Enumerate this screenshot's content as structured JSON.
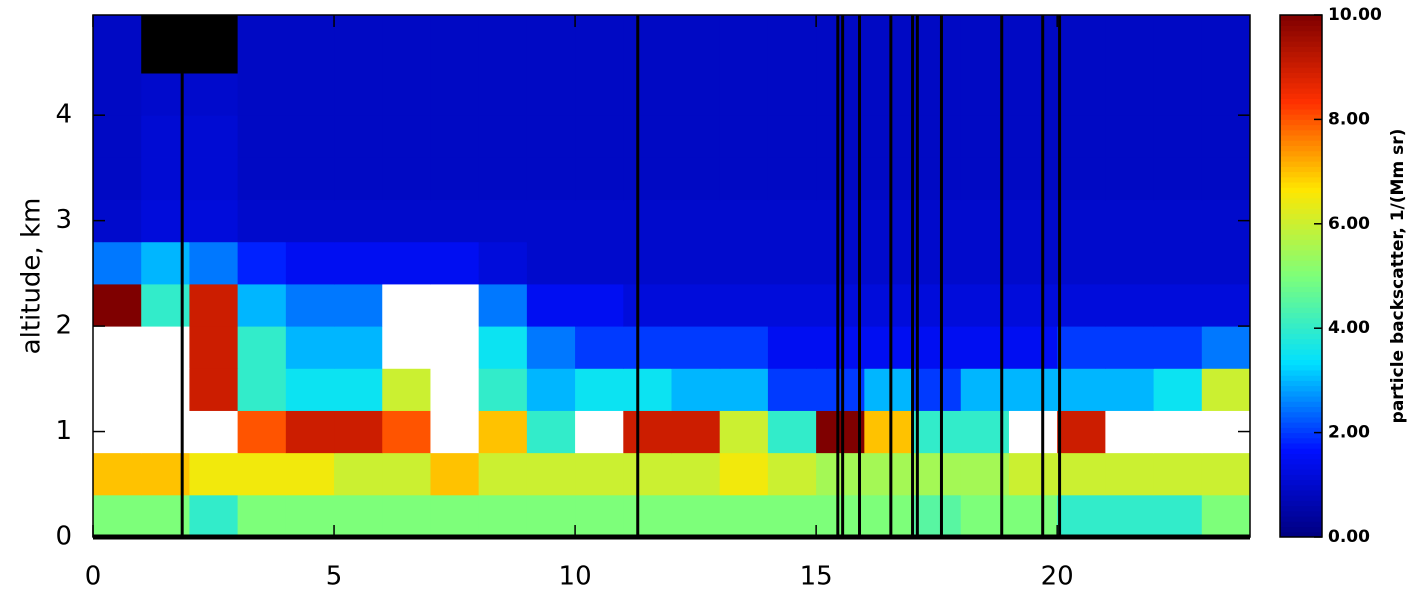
{
  "chart_data": {
    "type": "heatmap",
    "ylabel": "altitude, km",
    "colorbar_label": "particle backscatter, 1/(Mm sr)",
    "x_bins": [
      0,
      1,
      2,
      3,
      4,
      5,
      6,
      7,
      8,
      9,
      10,
      11,
      12,
      13,
      14,
      15,
      16,
      17,
      18,
      19,
      20,
      21,
      22,
      23,
      24
    ],
    "y_bins": [
      0,
      0.4,
      0.8,
      1.2,
      1.6,
      2.0,
      2.4,
      2.8,
      3.2,
      3.6,
      4.0,
      4.4,
      4.95
    ],
    "z": [
      [
        5,
        5,
        4,
        5,
        5,
        5,
        5,
        5,
        5,
        5,
        5,
        5,
        5,
        5,
        5,
        5,
        5,
        4.5,
        5,
        5,
        4,
        4,
        4,
        5
      ],
      [
        7,
        7,
        6.5,
        6.5,
        6.5,
        6,
        6,
        7,
        6,
        6,
        6,
        6,
        6,
        6.5,
        6,
        5.5,
        5.5,
        5.5,
        5.5,
        6,
        6,
        6,
        6,
        6
      ],
      [
        12,
        12,
        12,
        8,
        9,
        9,
        8,
        12,
        7,
        4,
        12,
        9,
        9,
        6,
        4,
        10,
        7,
        4,
        4,
        12,
        9,
        12,
        12,
        12
      ],
      [
        12,
        12,
        9,
        4,
        3.5,
        3.5,
        6,
        12,
        4,
        3,
        3.5,
        3.5,
        3,
        3,
        2,
        2,
        3,
        2,
        3,
        3,
        3,
        3,
        3.5,
        6
      ],
      [
        12,
        12,
        9,
        4,
        3,
        3,
        12,
        12,
        3.5,
        2.5,
        2,
        2,
        2,
        2,
        1.5,
        1.5,
        1.5,
        1.5,
        1.5,
        1.5,
        2,
        2,
        2,
        2.5
      ],
      [
        10,
        4,
        9,
        3,
        2.5,
        2.5,
        12,
        12,
        2.5,
        1.5,
        1.5,
        1.2,
        1.2,
        1.2,
        1.2,
        1.2,
        1.2,
        1.2,
        1.2,
        1.2,
        1.2,
        1.2,
        1.2,
        1.2
      ],
      [
        2.5,
        3,
        2.5,
        1.8,
        1.5,
        1.5,
        1.5,
        1.5,
        1.2,
        1,
        1,
        1,
        1,
        1,
        1,
        1,
        1,
        1,
        1,
        1,
        1,
        1,
        1,
        1
      ],
      [
        1,
        1.2,
        1.2,
        1,
        1,
        1,
        1,
        1,
        1,
        1,
        1,
        1,
        1,
        1,
        1,
        1,
        1,
        1,
        1,
        1,
        1,
        1,
        1,
        1
      ],
      [
        0.9,
        1.1,
        1.1,
        0.9,
        0.9,
        0.9,
        0.9,
        0.9,
        0.9,
        0.9,
        0.9,
        0.9,
        0.9,
        0.9,
        0.9,
        0.9,
        0.9,
        0.9,
        0.9,
        0.9,
        0.9,
        0.9,
        0.9,
        0.9
      ],
      [
        0.9,
        1.1,
        1.1,
        0.9,
        0.9,
        0.9,
        0.9,
        0.9,
        0.9,
        0.9,
        0.9,
        0.9,
        0.9,
        0.9,
        0.9,
        0.9,
        0.9,
        0.9,
        0.9,
        0.9,
        0.9,
        0.9,
        0.9,
        0.9
      ],
      [
        0.9,
        1,
        1,
        0.9,
        0.9,
        0.9,
        0.9,
        0.9,
        0.9,
        0.9,
        0.9,
        0.9,
        0.9,
        0.9,
        0.9,
        0.9,
        0.9,
        0.9,
        0.9,
        0.9,
        0.9,
        0.9,
        0.9,
        0.9
      ],
      [
        0.9,
        null,
        null,
        0.9,
        0.9,
        0.9,
        0.9,
        0.9,
        0.9,
        0.9,
        0.9,
        0.9,
        0.9,
        0.9,
        0.9,
        0.9,
        0.9,
        0.9,
        0.9,
        0.9,
        0.9,
        0.9,
        0.9,
        0.9
      ]
    ],
    "no_data_x": [
      1.85,
      11.3,
      15.45,
      15.55,
      15.9,
      16.55,
      17.0,
      17.1,
      17.6,
      18.85,
      19.7,
      20.05
    ],
    "xlim": [
      0,
      24
    ],
    "xticks": [
      0,
      5,
      10,
      15,
      20
    ],
    "ylim": [
      0,
      4.95
    ],
    "yticks": [
      0,
      1,
      2,
      3,
      4
    ],
    "zlim": [
      0,
      10
    ],
    "zticks": [
      {
        "value": 0,
        "label": "0.00"
      },
      {
        "value": 2,
        "label": "2.00"
      },
      {
        "value": 4,
        "label": "4.00"
      },
      {
        "value": 6,
        "label": "6.00"
      },
      {
        "value": 8,
        "label": "8.00"
      },
      {
        "value": 10,
        "label": "10.00"
      }
    ],
    "colorscale": [
      "#00007f",
      "#0010ff",
      "#00e0ff",
      "#7dff7a",
      "#ffe600",
      "#ff3000",
      "#7f0000"
    ],
    "over_color": "#ffffff",
    "missing_color": "#000000"
  }
}
